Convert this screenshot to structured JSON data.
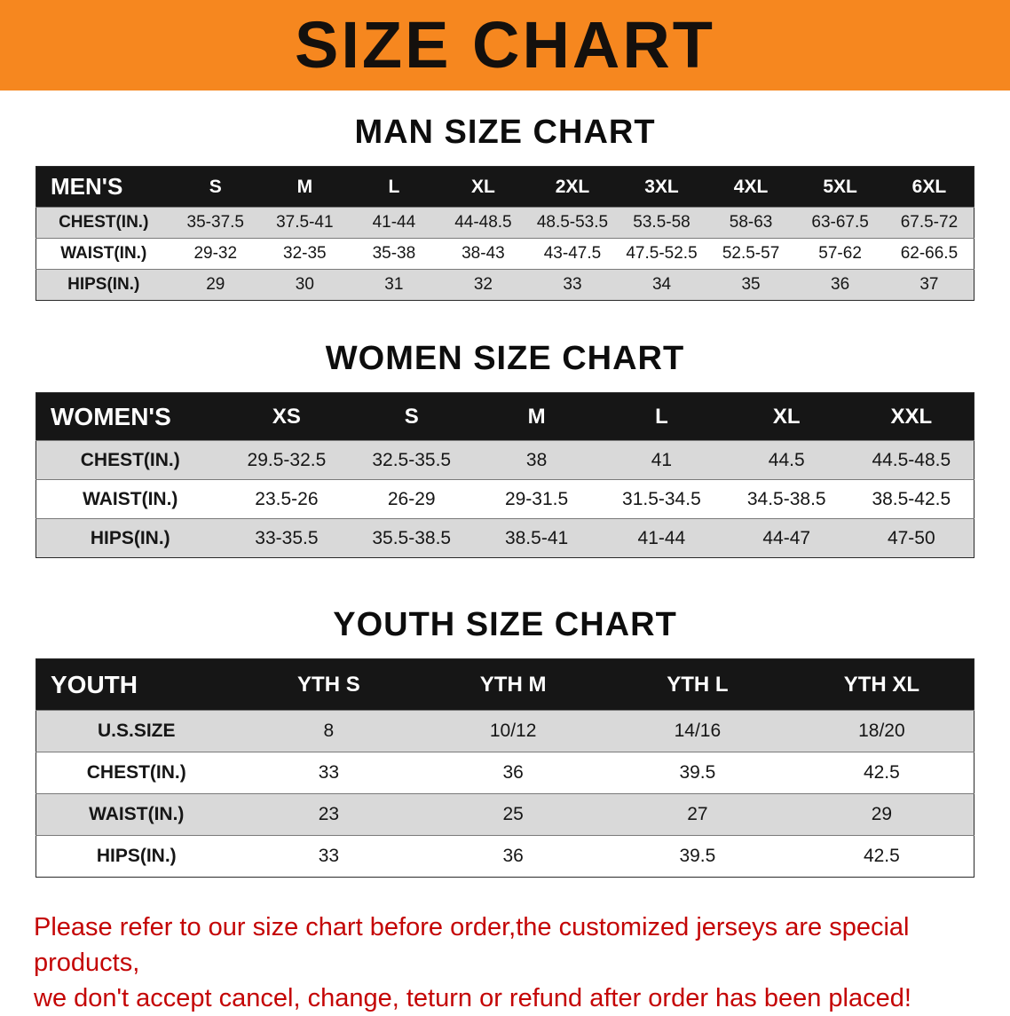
{
  "banner": {
    "title": "SIZE CHART"
  },
  "tables": [
    {
      "heading": "MAN SIZE CHART",
      "header": [
        "MEN'S",
        "S",
        "M",
        "L",
        "XL",
        "2XL",
        "3XL",
        "4XL",
        "5XL",
        "6XL"
      ],
      "rows": [
        [
          "CHEST(IN.)",
          "35-37.5",
          "37.5-41",
          "41-44",
          "44-48.5",
          "48.5-53.5",
          "53.5-58",
          "58-63",
          "63-67.5",
          "67.5-72"
        ],
        [
          "WAIST(IN.)",
          "29-32",
          "32-35",
          "35-38",
          "38-43",
          "43-47.5",
          "47.5-52.5",
          "52.5-57",
          "57-62",
          "62-66.5"
        ],
        [
          "HIPS(IN.)",
          "29",
          "30",
          "31",
          "32",
          "33",
          "34",
          "35",
          "36",
          "37"
        ]
      ]
    },
    {
      "heading": "WOMEN SIZE CHART",
      "header": [
        "WOMEN'S",
        "XS",
        "S",
        "M",
        "L",
        "XL",
        "XXL"
      ],
      "rows": [
        [
          "CHEST(IN.)",
          "29.5-32.5",
          "32.5-35.5",
          "38",
          "41",
          "44.5",
          "44.5-48.5"
        ],
        [
          "WAIST(IN.)",
          "23.5-26",
          "26-29",
          "29-31.5",
          "31.5-34.5",
          "34.5-38.5",
          "38.5-42.5"
        ],
        [
          "HIPS(IN.)",
          "33-35.5",
          "35.5-38.5",
          "38.5-41",
          "41-44",
          "44-47",
          "47-50"
        ]
      ]
    },
    {
      "heading": "YOUTH SIZE CHART",
      "header": [
        "YOUTH",
        "YTH S",
        "YTH M",
        "YTH L",
        "YTH XL"
      ],
      "rows": [
        [
          "U.S.SIZE",
          "8",
          "10/12",
          "14/16",
          "18/20"
        ],
        [
          "CHEST(IN.)",
          "33",
          "36",
          "39.5",
          "42.5"
        ],
        [
          "WAIST(IN.)",
          "23",
          "25",
          "27",
          "29"
        ],
        [
          "HIPS(IN.)",
          "33",
          "36",
          "39.5",
          "42.5"
        ]
      ]
    }
  ],
  "footer": {
    "lines": [
      "Please refer to our size chart before order,the customized jerseys are special products,",
      "we don't accept cancel, change, teturn or refund after order has been placed!"
    ]
  },
  "colors": {
    "banner_bg": "#F6871F",
    "table_header_bg": "#161616",
    "row_shade": "#D9D9D9",
    "notice_text": "#C40505"
  }
}
